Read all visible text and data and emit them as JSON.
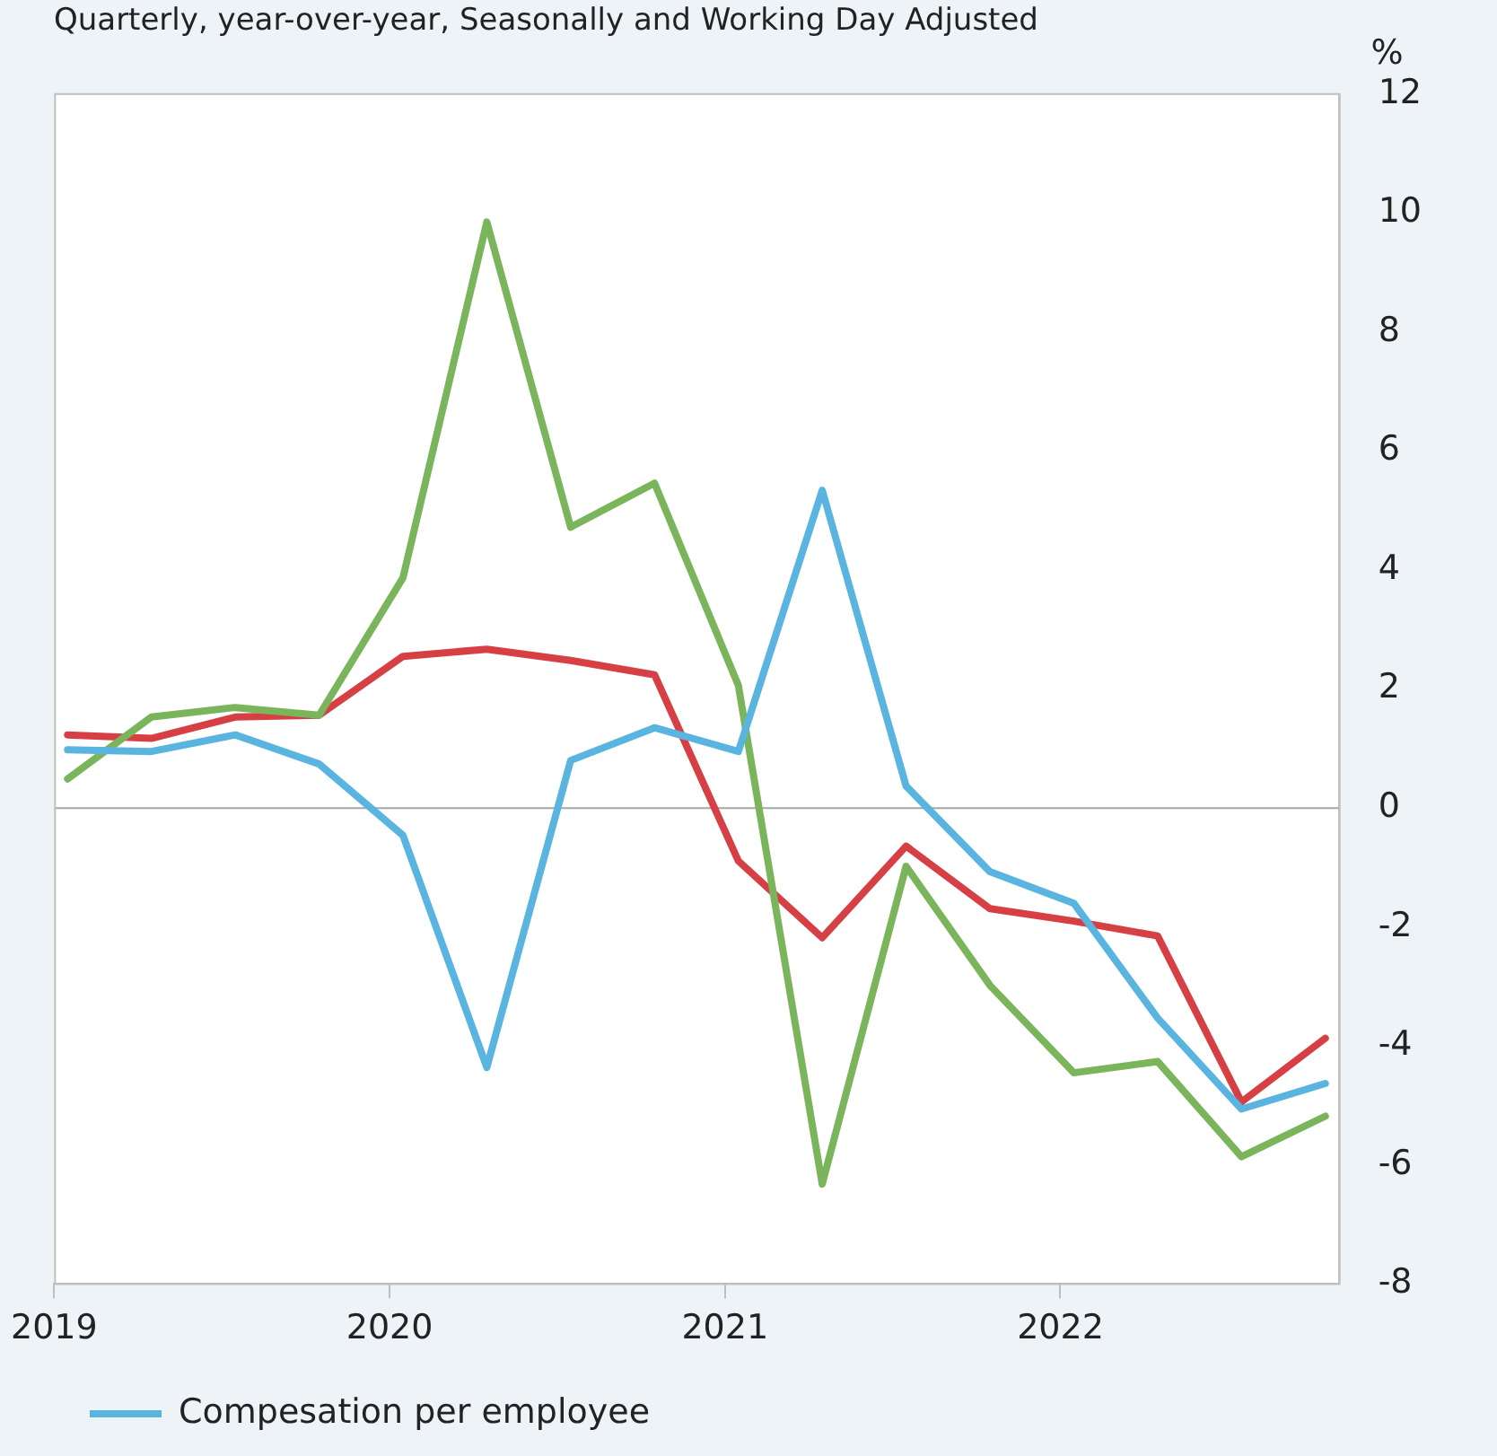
{
  "chart_data": {
    "type": "line",
    "subtitle": "Quarterly, year-over-year, Seasonally and Working Day Adjusted",
    "ylabel": "%",
    "x": [
      2019.04,
      2019.29,
      2019.54,
      2019.79,
      2020.04,
      2020.29,
      2020.54,
      2020.79,
      2021.04,
      2021.29,
      2021.54,
      2021.79,
      2022.04,
      2022.29,
      2022.54,
      2022.79
    ],
    "series": [
      {
        "name": "Compesation per employee",
        "color": "#5ab4e0",
        "values": [
          0.98,
          0.95,
          1.23,
          0.74,
          -0.46,
          -4.36,
          0.8,
          1.35,
          0.95,
          5.34,
          0.37,
          -1.07,
          -1.6,
          -3.53,
          -5.06,
          -4.63
        ]
      },
      {
        "color": "#7ab55c",
        "values": [
          0.49,
          1.53,
          1.69,
          1.56,
          3.87,
          9.85,
          4.72,
          5.46,
          2.06,
          -6.32,
          -0.98,
          -2.98,
          -4.45,
          -4.26,
          -5.86,
          -5.18
        ]
      },
      {
        "color": "#d64045",
        "values": [
          1.23,
          1.17,
          1.53,
          1.56,
          2.55,
          2.67,
          2.48,
          2.24,
          -0.89,
          -2.18,
          -0.64,
          -1.69,
          -1.9,
          -2.15,
          -4.94,
          -3.87
        ]
      }
    ],
    "xlim": [
      2019,
      2022.83
    ],
    "xticks": [
      2019,
      2020,
      2021,
      2022
    ],
    "ylim": [
      -8,
      12
    ],
    "yticks": [
      -8,
      -6,
      -4,
      -2,
      0,
      2,
      4,
      6,
      8,
      10,
      12
    ],
    "ref_lines": [
      {
        "axis": "y",
        "value": 0,
        "color": "#a6a6a6"
      }
    ],
    "grid": false,
    "legend": "bottom left",
    "marker": "none",
    "line_style": "solid"
  }
}
